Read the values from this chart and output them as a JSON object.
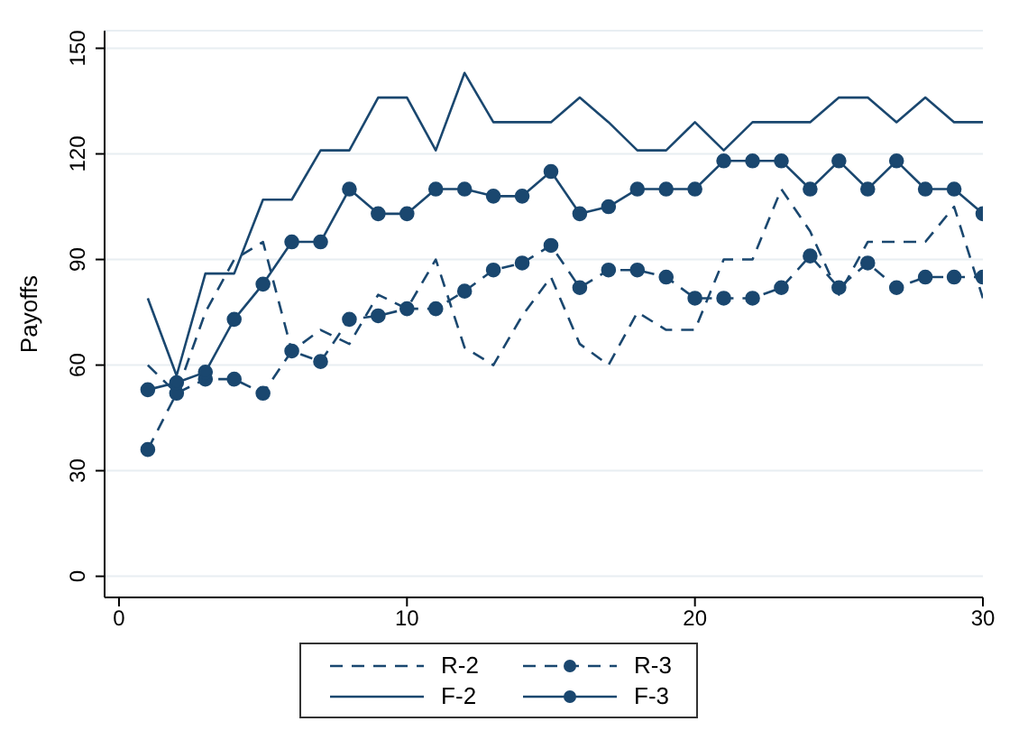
{
  "chart_data": {
    "type": "line",
    "ylabel": "Payoffs",
    "x": [
      1,
      2,
      3,
      4,
      5,
      6,
      7,
      8,
      9,
      10,
      11,
      12,
      13,
      14,
      15,
      16,
      17,
      18,
      19,
      20,
      21,
      22,
      23,
      24,
      25,
      26,
      27,
      28,
      29,
      30
    ],
    "xlim": [
      -0.5,
      30
    ],
    "xticks": [
      0,
      10,
      20,
      30
    ],
    "ylim": [
      -6,
      155
    ],
    "yticks": [
      0,
      30,
      60,
      90,
      120,
      150
    ],
    "grid": "y",
    "legend": "bottom",
    "series": [
      {
        "name": "R-2",
        "color": "#1a476f",
        "line_style": "dashed",
        "marker": "none",
        "values": [
          60,
          52,
          75,
          90,
          95,
          64,
          70,
          66,
          80,
          76,
          90,
          65,
          60,
          74,
          85,
          66,
          60,
          75,
          70,
          70,
          90,
          90,
          110,
          98,
          80,
          95,
          95,
          95,
          105,
          79
        ]
      },
      {
        "name": "R-3",
        "color": "#1a476f",
        "line_style": "dashed",
        "marker": "circle",
        "values": [
          36,
          52,
          56,
          56,
          52,
          64,
          61,
          73,
          74,
          76,
          76,
          81,
          87,
          89,
          94,
          82,
          87,
          87,
          85,
          79,
          79,
          79,
          82,
          91,
          82,
          89,
          82,
          85,
          85,
          85
        ]
      },
      {
        "name": "F-2",
        "color": "#1a476f",
        "line_style": "solid",
        "marker": "none",
        "values": [
          79,
          57,
          86,
          86,
          107,
          107,
          121,
          121,
          136,
          136,
          121,
          143,
          129,
          129,
          129,
          136,
          129,
          121,
          121,
          129,
          121,
          129,
          129,
          129,
          136,
          136,
          129,
          136,
          129,
          129
        ]
      },
      {
        "name": "F-3",
        "color": "#1a476f",
        "line_style": "solid",
        "marker": "circle",
        "values": [
          53,
          55,
          58,
          73,
          83,
          95,
          95,
          110,
          103,
          103,
          110,
          110,
          108,
          108,
          115,
          103,
          105,
          110,
          110,
          110,
          118,
          118,
          118,
          110,
          118,
          110,
          118,
          110,
          110,
          103
        ]
      }
    ]
  }
}
